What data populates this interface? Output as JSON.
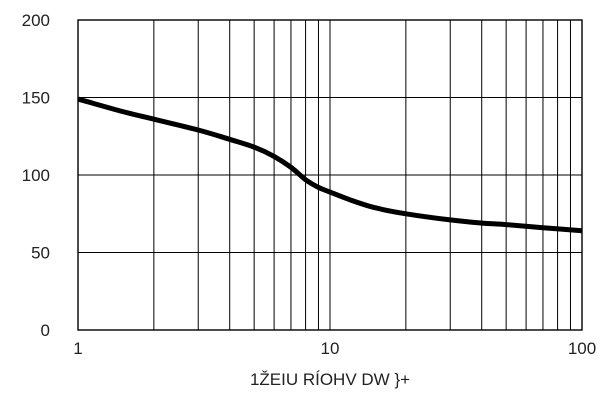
{
  "chart_data": {
    "type": "line",
    "title": "",
    "xlabel": "1ŽEIU   RÍOHV   DW   }+",
    "ylabel": "",
    "x_scale": "log",
    "xlim": [
      1,
      100
    ],
    "ylim": [
      0,
      200
    ],
    "x_ticks": [
      1,
      10,
      100
    ],
    "x_tick_labels": [
      "1",
      "10",
      "100"
    ],
    "y_ticks": [
      0,
      50,
      100,
      150,
      200
    ],
    "y_tick_labels": [
      "0",
      "50",
      "100",
      "150",
      "200"
    ],
    "grid": true,
    "line_color": "#000000",
    "series": [
      {
        "x": [
          1,
          1.5,
          2,
          3,
          4,
          5,
          6,
          7,
          8,
          9,
          10,
          12,
          15,
          20,
          30,
          40,
          50,
          70,
          100
        ],
        "y": [
          149,
          141,
          136,
          129,
          123,
          118,
          112,
          105,
          97,
          92,
          89,
          84,
          79,
          75,
          71,
          69,
          68,
          66,
          64
        ]
      }
    ]
  }
}
